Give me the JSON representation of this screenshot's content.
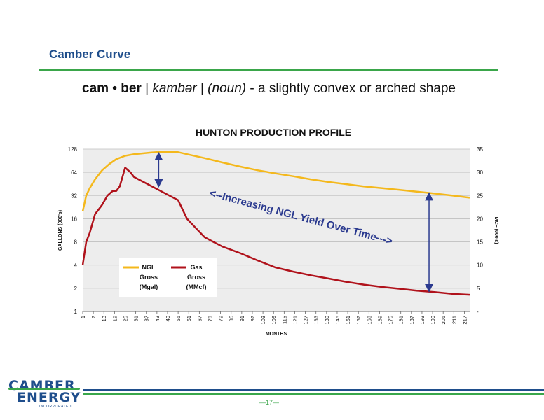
{
  "slide": {
    "title": "Camber Curve",
    "definition": {
      "word": "cam • ber",
      "sep1": " | ",
      "pronunciation": "kambər",
      "sep2": " | ",
      "pos": "(noun)",
      "meaning": " - a slightly convex or arched shape"
    },
    "page_number": "—17—",
    "logo": {
      "line1": "CAMBER",
      "line2": "ENERGY",
      "subtitle": "INCORPORATED"
    }
  },
  "colors": {
    "ngl": "#f4b81c",
    "gas": "#b0121b",
    "accent_blue": "#1f4e8c",
    "accent_green": "#3aa64a",
    "arrow": "#2b3a8f",
    "plot_bg": "#ededed",
    "grid": "#bfbfbf"
  },
  "chart_data": {
    "type": "line",
    "title": "HUNTON PRODUCTION PROFILE",
    "xlabel": "MONTHS",
    "ylabel": "GALLONS (000's)",
    "y2label": "MCF (000's)",
    "x_range": [
      1,
      220
    ],
    "x_ticks": [
      "1",
      "7",
      "13",
      "19",
      "25",
      "31",
      "37",
      "43",
      "49",
      "55",
      "61",
      "67",
      "73",
      "79",
      "85",
      "91",
      "97",
      "103",
      "109",
      "115",
      "121",
      "127",
      "133",
      "139",
      "145",
      "151",
      "157",
      "163",
      "169",
      "175",
      "181",
      "187",
      "193",
      "199",
      "205",
      "211",
      "217"
    ],
    "y_scale": "log2",
    "y_ticks": [
      "1",
      "2",
      "4",
      "8",
      "16",
      "32",
      "64",
      "128"
    ],
    "y2_ticks": [
      "-",
      "5",
      "10",
      "15",
      "20",
      "25",
      "30",
      "35"
    ],
    "grid": true,
    "legend": [
      {
        "label": "NGL\nGross\n(Mgal)"
      },
      {
        "label": "Gas\nGross\n(MMcf)"
      }
    ],
    "annotation": "<--Increasing NGL Yield Over Time--->",
    "series": [
      {
        "name": "NGL Gross (Mgal)",
        "axis": "left",
        "x": [
          1,
          3,
          5,
          8,
          12,
          16,
          20,
          25,
          30,
          35,
          40,
          45,
          50,
          55,
          60,
          70,
          80,
          90,
          100,
          110,
          120,
          130,
          140,
          150,
          160,
          170,
          180,
          190,
          200,
          210,
          220
        ],
        "values": [
          20,
          32,
          40,
          52,
          68,
          82,
          95,
          105,
          110,
          113,
          116,
          118,
          118,
          117,
          110,
          98,
          86,
          76,
          68,
          62,
          57,
          52,
          48,
          45,
          42,
          40,
          38,
          36,
          34,
          32,
          30
        ]
      },
      {
        "name": "Gas Gross (MMcf)",
        "axis": "right",
        "x": [
          1,
          3,
          5,
          8,
          10,
          12,
          15,
          18,
          20,
          22,
          25,
          28,
          30,
          35,
          40,
          45,
          50,
          55,
          60,
          65,
          70,
          75,
          80,
          90,
          100,
          110,
          120,
          130,
          140,
          150,
          160,
          170,
          180,
          190,
          200,
          210,
          220
        ],
        "values": [
          10,
          15,
          17,
          21,
          22,
          23,
          25,
          26,
          26,
          27,
          31,
          30,
          29,
          28,
          27,
          26,
          25,
          24,
          20,
          18,
          16,
          15,
          14,
          12.6,
          11,
          9.5,
          8.6,
          7.8,
          7.1,
          6.4,
          5.8,
          5.3,
          4.9,
          4.5,
          4.2,
          3.8,
          3.6
        ]
      }
    ]
  }
}
